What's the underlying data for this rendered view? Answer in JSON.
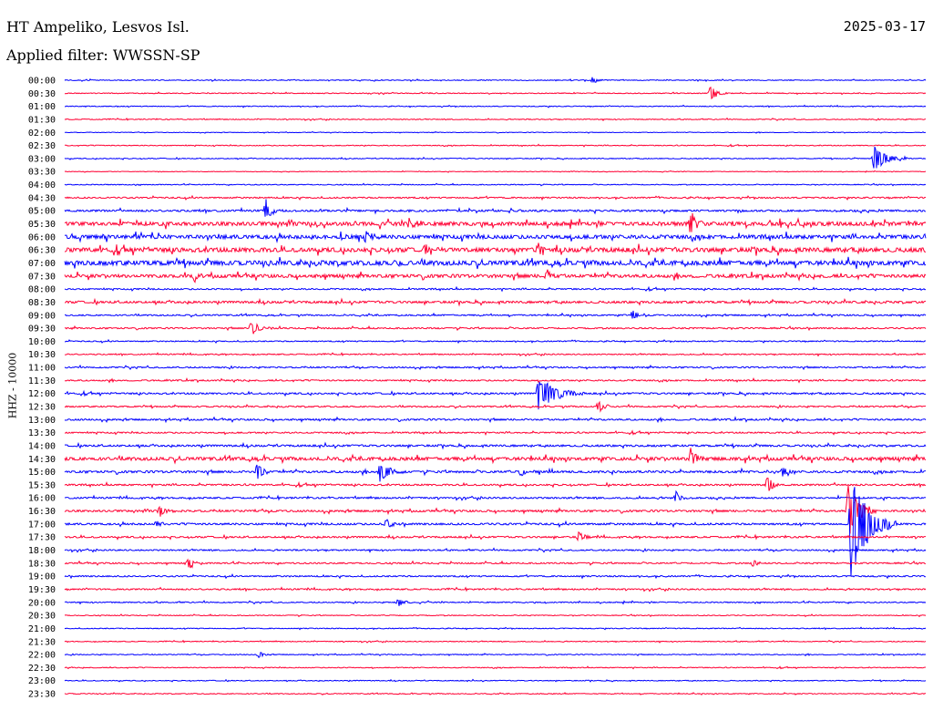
{
  "header": {
    "station": "HT Ampeliko, Lesvos Isl.",
    "filter_label": "Applied filter: WWSSN-SP",
    "date": "2025-03-17"
  },
  "colors": {
    "even_trace": "#0000ff",
    "odd_trace": "#ff0033"
  },
  "chart_data": {
    "type": "line",
    "title": "HT Ampeliko, Lesvos Isl.",
    "subtitle": "Applied filter: WWSSN-SP",
    "ylabel": "HHZ - 10000",
    "xlabel": "",
    "rows": [
      "00:00",
      "00:30",
      "01:00",
      "01:30",
      "02:00",
      "02:30",
      "03:00",
      "03:30",
      "04:00",
      "04:30",
      "05:00",
      "05:30",
      "06:00",
      "06:30",
      "07:00",
      "07:30",
      "08:00",
      "08:30",
      "09:00",
      "09:30",
      "10:00",
      "10:30",
      "11:00",
      "11:30",
      "12:00",
      "12:30",
      "13:00",
      "13:30",
      "14:00",
      "14:30",
      "15:00",
      "15:30",
      "16:00",
      "16:30",
      "17:00",
      "17:30",
      "18:00",
      "18:30",
      "19:00",
      "19:30",
      "20:00",
      "20:30",
      "21:00",
      "21:30",
      "22:00",
      "22:30",
      "23:00",
      "23:30"
    ],
    "row_minutes": 30,
    "noise_level": [
      0.3,
      0.3,
      0.3,
      0.3,
      0.2,
      0.3,
      0.3,
      0.2,
      0.3,
      0.5,
      0.7,
      1.4,
      1.4,
      1.6,
      1.7,
      1.2,
      0.5,
      0.8,
      0.5,
      0.5,
      0.4,
      0.4,
      0.5,
      0.5,
      0.6,
      0.5,
      0.6,
      0.5,
      0.7,
      1.2,
      0.8,
      0.6,
      0.6,
      0.7,
      0.7,
      0.6,
      0.5,
      0.5,
      0.5,
      0.5,
      0.4,
      0.3,
      0.3,
      0.3,
      0.3,
      0.3,
      0.3,
      0.3
    ],
    "events": [
      {
        "row": 0,
        "minute": 18.4,
        "amplitude": 4,
        "duration_min": 0.5
      },
      {
        "row": 1,
        "minute": 22.5,
        "amplitude": 9,
        "duration_min": 0.6
      },
      {
        "row": 6,
        "minute": 28.2,
        "amplitude": 14,
        "duration_min": 1.2
      },
      {
        "row": 10,
        "minute": 7.0,
        "amplitude": 12,
        "duration_min": 0.6
      },
      {
        "row": 11,
        "minute": 12.0,
        "amplitude": 6,
        "duration_min": 0.6
      },
      {
        "row": 11,
        "minute": 21.8,
        "amplitude": 14,
        "duration_min": 0.6
      },
      {
        "row": 12,
        "minute": 10.5,
        "amplitude": 9,
        "duration_min": 0.5
      },
      {
        "row": 13,
        "minute": 12.5,
        "amplitude": 7,
        "duration_min": 1.0
      },
      {
        "row": 13,
        "minute": 16.5,
        "amplitude": 6,
        "duration_min": 0.5
      },
      {
        "row": 14,
        "minute": 11.5,
        "amplitude": 6,
        "duration_min": 0.5
      },
      {
        "row": 15,
        "minute": 4.5,
        "amplitude": 8,
        "duration_min": 0.4
      },
      {
        "row": 15,
        "minute": 16.8,
        "amplitude": 8,
        "duration_min": 0.3
      },
      {
        "row": 18,
        "minute": 19.8,
        "amplitude": 8,
        "duration_min": 0.4
      },
      {
        "row": 19,
        "minute": 6.5,
        "amplitude": 8,
        "duration_min": 0.8
      },
      {
        "row": 24,
        "minute": 16.5,
        "amplitude": 20,
        "duration_min": 1.6
      },
      {
        "row": 25,
        "minute": 18.6,
        "amplitude": 7,
        "duration_min": 0.5
      },
      {
        "row": 29,
        "minute": 21.8,
        "amplitude": 12,
        "duration_min": 0.6
      },
      {
        "row": 30,
        "minute": 6.7,
        "amplitude": 9,
        "duration_min": 0.6
      },
      {
        "row": 30,
        "minute": 11.0,
        "amplitude": 14,
        "duration_min": 0.8
      },
      {
        "row": 30,
        "minute": 15.9,
        "amplitude": 6,
        "duration_min": 0.5
      },
      {
        "row": 30,
        "minute": 25.0,
        "amplitude": 7,
        "duration_min": 0.4
      },
      {
        "row": 31,
        "minute": 24.5,
        "amplitude": 14,
        "duration_min": 0.4
      },
      {
        "row": 32,
        "minute": 21.3,
        "amplitude": 7,
        "duration_min": 0.4
      },
      {
        "row": 33,
        "minute": 3.3,
        "amplitude": 6,
        "duration_min": 0.8
      },
      {
        "row": 33,
        "minute": 27.3,
        "amplitude": 30,
        "duration_min": 1.0
      },
      {
        "row": 34,
        "minute": 27.4,
        "amplitude": 60,
        "duration_min": 1.6
      },
      {
        "row": 34,
        "minute": 11.2,
        "amplitude": 6,
        "duration_min": 0.5
      },
      {
        "row": 34,
        "minute": 3.2,
        "amplitude": 5,
        "duration_min": 0.5
      },
      {
        "row": 35,
        "minute": 17.9,
        "amplitude": 7,
        "duration_min": 0.5
      },
      {
        "row": 37,
        "minute": 4.3,
        "amplitude": 8,
        "duration_min": 0.5
      },
      {
        "row": 37,
        "minute": 24.0,
        "amplitude": 6,
        "duration_min": 0.4
      },
      {
        "row": 40,
        "minute": 11.6,
        "amplitude": 5,
        "duration_min": 0.6
      },
      {
        "row": 44,
        "minute": 6.8,
        "amplitude": 5,
        "duration_min": 0.3
      }
    ],
    "x_range_min": [
      0,
      30
    ],
    "grid": false
  }
}
